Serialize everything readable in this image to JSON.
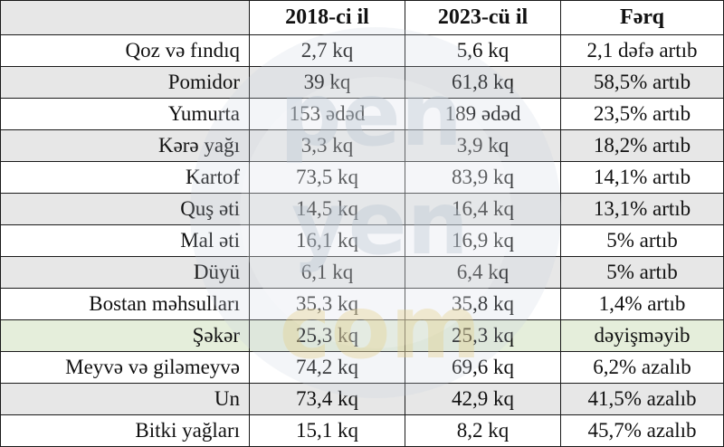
{
  "table": {
    "headers": [
      "",
      "2018-ci il",
      "2023-cü il",
      "Fərq"
    ],
    "rows": [
      [
        "Qoz və fındıq",
        "2,7 kq",
        "5,6 kq",
        "2,1 dəfə artıb"
      ],
      [
        "Pomidor",
        "39 kq",
        "61,8 kq",
        "58,5% artıb"
      ],
      [
        "Yumurta",
        "153 ədəd",
        "189 ədəd",
        "23,5% artıb"
      ],
      [
        "Kərə yağı",
        "3,3 kq",
        "3,9 kq",
        "18,2% artıb"
      ],
      [
        "Kartof",
        "73,5  kq",
        "83,9 kq",
        "14,1% artıb"
      ],
      [
        "Quş əti",
        "14,5 kq",
        "16,4 kq",
        "13,1% artıb"
      ],
      [
        "Mal əti",
        "16,1 kq",
        "16,9 kq",
        "5% artıb"
      ],
      [
        "Düyü",
        "6,1 kq",
        "6,4 kq",
        "5% artıb"
      ],
      [
        "Bostan məhsulları",
        "35,3 kq",
        "35,8 kq",
        "1,4% artıb"
      ],
      [
        "Şəkər",
        "25,3 kq",
        "25,3 kq",
        "dəyişməyib"
      ],
      [
        "Meyvə və giləmeyvə",
        "74,2 kq",
        "69,6 kq",
        "6,2% azalıb"
      ],
      [
        "Un",
        "73,4 kq",
        "42,9 kq",
        "41,5% azalıb"
      ],
      [
        "Bitki yağları",
        "15,1 kq",
        "8,2 kq",
        "45,7% azalıb"
      ]
    ]
  },
  "colors": {
    "shaded_row": "#e7e7e7",
    "highlight_row": "#e5eedb",
    "border": "#1a1a1a",
    "watermark": "#c9d3df"
  },
  "watermark": {
    "lines": [
      "pen",
      "yen",
      "com"
    ],
    "icon": "circle-logo-watermark"
  }
}
